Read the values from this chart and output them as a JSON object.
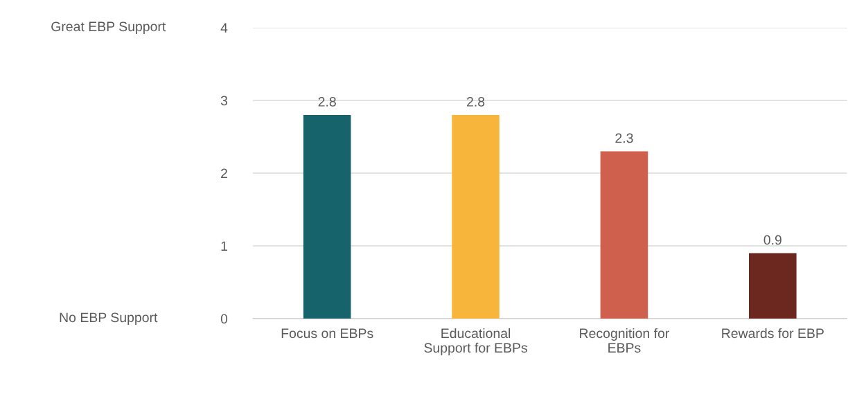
{
  "chart_data": {
    "type": "bar",
    "categories": [
      "Focus on EBPs",
      "Educational\nSupport for EBPs",
      "Recognition for\nEBPs",
      "Rewards for EBP"
    ],
    "values": [
      2.8,
      2.8,
      2.3,
      0.9
    ],
    "colors": [
      "#17636b",
      "#f8b53c",
      "#d0604e",
      "#6c271f"
    ],
    "ylim": [
      0,
      4
    ],
    "yticks": [
      0,
      1,
      2,
      3,
      4
    ],
    "grid": "y",
    "data_labels": true,
    "annotations": [
      "Great EBP Support",
      "No EBP Support"
    ]
  }
}
